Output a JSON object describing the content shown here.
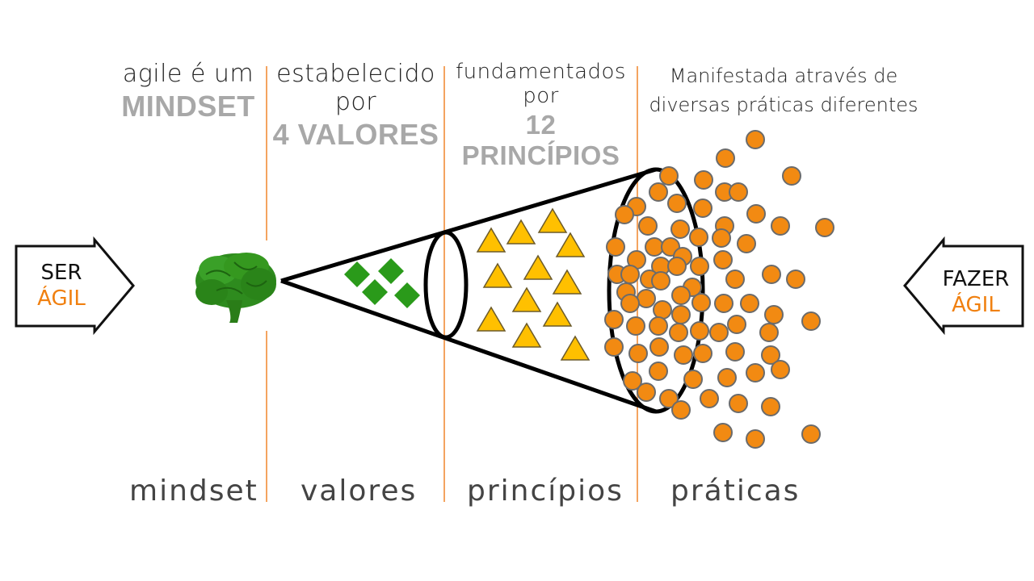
{
  "headers": {
    "mindset": {
      "line1": "agile é um",
      "line2": "MINDSET"
    },
    "valores": {
      "line1": "estabelecido por",
      "line2": "4 VALORES"
    },
    "principios": {
      "line1": "fundamentados por",
      "line2": "12 PRINCÍPIOS"
    },
    "praticas": {
      "line1": "Manifestada através de",
      "line2": "diversas práticas diferentes"
    }
  },
  "footers": {
    "mindset": "mindset",
    "valores": "valores",
    "principios": "princípios",
    "praticas": "práticas"
  },
  "ser": {
    "line1": "SER",
    "line2": "ÁGIL"
  },
  "fazer": {
    "line1": "FAZER",
    "line2": "ÁGIL"
  },
  "colors": {
    "brain": "#2e8b1e",
    "diamond": "#2a9a1a",
    "triangle": "#ffc000",
    "circle": "#f28a12",
    "accent": "#f08010",
    "divider": "#f4a460"
  },
  "icons": {
    "brain": "brain-icon",
    "valor": "diamond-icon",
    "principio": "triangle-icon",
    "pratica": "circle-icon"
  },
  "counts": {
    "valores": 4,
    "principios": 12
  }
}
